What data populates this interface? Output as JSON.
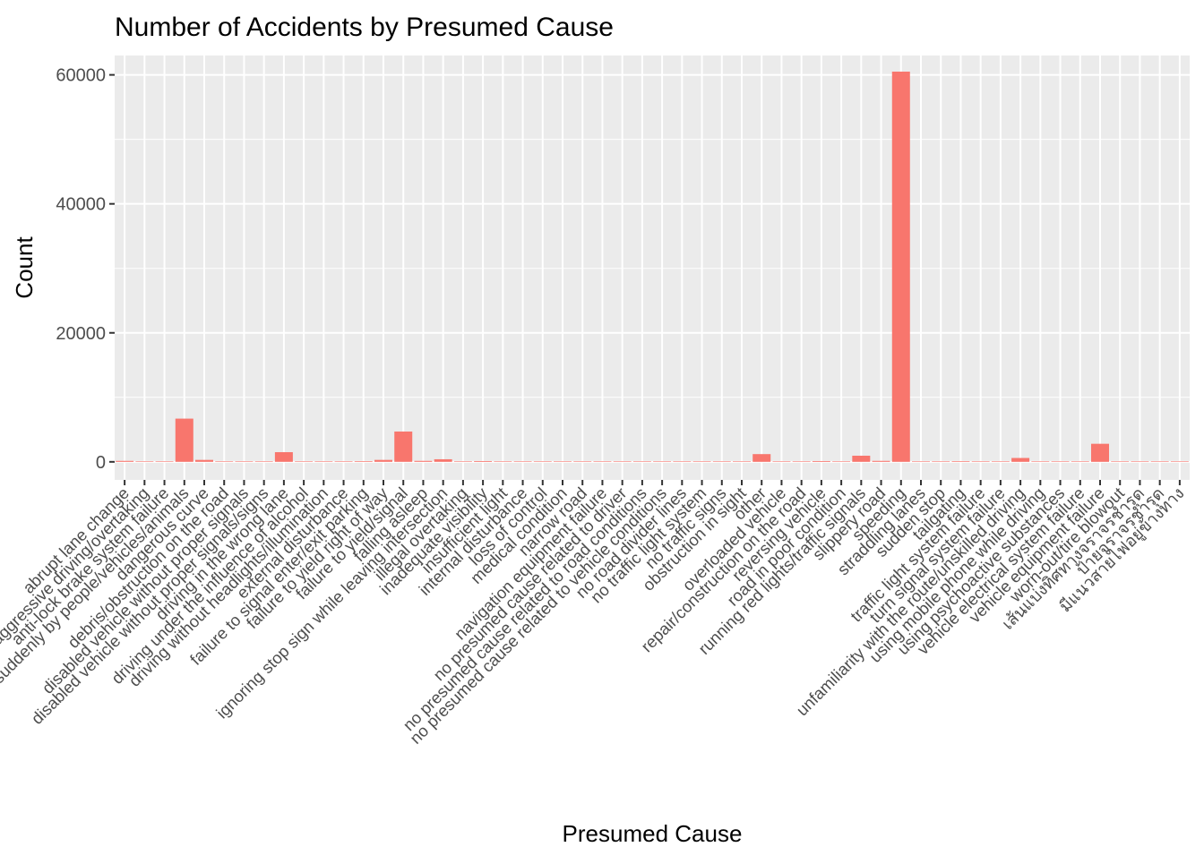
{
  "chart_data": {
    "type": "bar",
    "title": "Number of Accidents by Presumed Cause",
    "xlabel": "Presumed Cause",
    "ylabel": "Count",
    "ylim": [
      -2800,
      63000
    ],
    "yticks": [
      0,
      20000,
      40000,
      60000
    ],
    "grid": true,
    "legend": "none",
    "bar_color": "#F8766D",
    "panel_background": "#EBEBEB",
    "grid_color": "#FFFFFF",
    "categories": [
      "abrupt lane change",
      "aggressive driving/overtaking",
      "anti-lock brake system failure",
      "cut off suddenly by people/vehicles/animals",
      "dangerous curve",
      "debris/obstruction on the road",
      "disabled vehicle without proper signals",
      "disabled vehicle without proper signals/signs",
      "driving in the wrong lane",
      "driving under the influence of alcohol",
      "driving without headlights/illumination",
      "external disturbance",
      "failure to signal enter/exit parking",
      "failure to yield right of way",
      "failure to yield/signal",
      "falling asleep",
      "ignoring stop sign while leaving intersection",
      "illegal overtaking",
      "inadequate visibility",
      "insufficient light",
      "internal disturbance",
      "loss of control",
      "medical condition",
      "narrow road",
      "navigation equipment failure",
      "no presumed cause related to driver",
      "no presumed cause related to road conditions",
      "no presumed cause related to vehicle conditions",
      "no road divider lines",
      "no traffic light system",
      "no traffic signs",
      "obstruction in sight",
      "other",
      "overloaded vehicle",
      "repair/construction on the road",
      "reversing vehicle",
      "road in poor condition",
      "running red lights/traffic signals",
      "slippery road",
      "speeding",
      "straddling lanes",
      "sudden stop",
      "tailgating",
      "traffic light system failure",
      "turn signal system failure",
      "unfamiliarity with the route/unskilled driving",
      "using mobile phone while driving",
      "using psychoactive substances",
      "vehicle electrical system failure",
      "vehicle equipment failure",
      "worn-out/tire blowout",
      "เส้นแบ่งทิศทางจราจรชำรุด",
      "ป้ายจราจรชำรุด",
      "มีแนวสายไฟอยู่ข้างทาง"
    ],
    "values": [
      150,
      20,
      60,
      6700,
      300,
      40,
      20,
      30,
      1500,
      50,
      30,
      20,
      100,
      300,
      4700,
      150,
      400,
      40,
      120,
      30,
      20,
      30,
      20,
      20,
      10,
      10,
      10,
      10,
      20,
      10,
      20,
      20,
      1200,
      80,
      30,
      120,
      20,
      950,
      150,
      60500,
      20,
      20,
      100,
      20,
      30,
      600,
      50,
      20,
      30,
      2800,
      80,
      10,
      10,
      10
    ]
  }
}
